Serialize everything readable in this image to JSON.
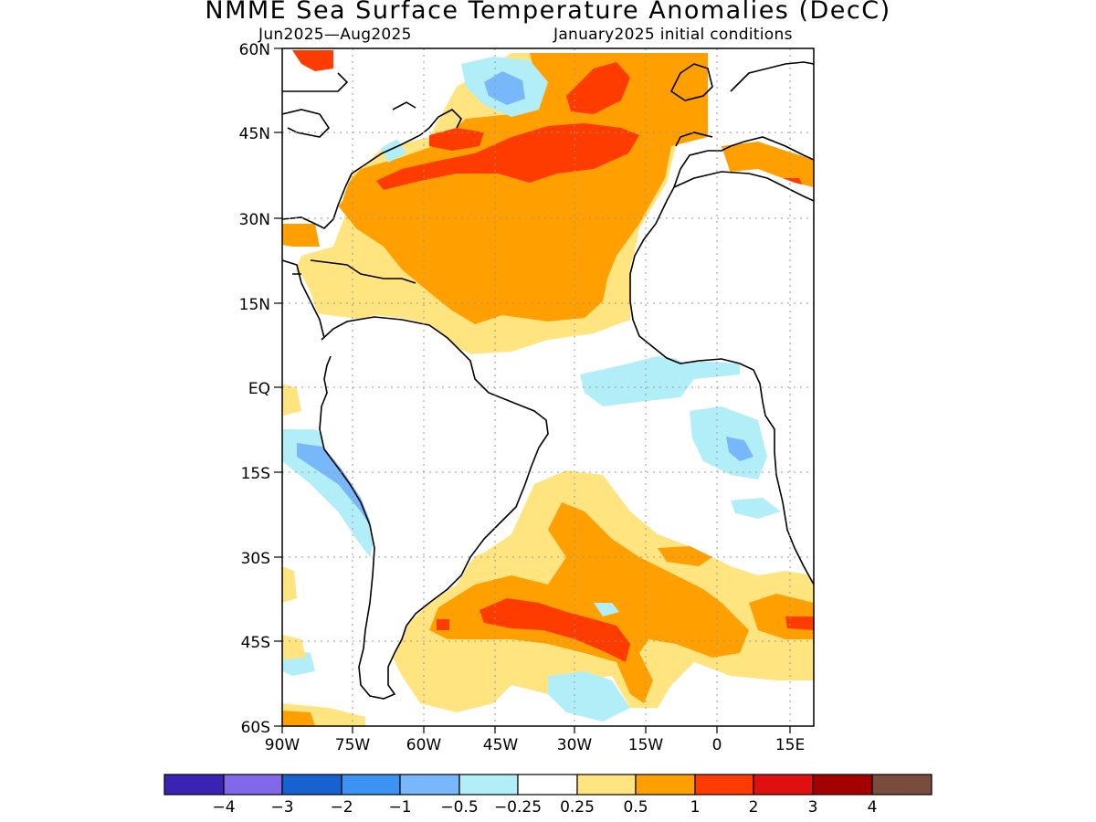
{
  "title": "NMME Sea Surface Temperature Anomalies (DecC)",
  "period": "Jun2025—Aug2025",
  "init": "January2025 initial conditions",
  "lat_labels": [
    "60N",
    "45N",
    "30N",
    "15N",
    "EQ",
    "15S",
    "30S",
    "45S",
    "60S"
  ],
  "lon_labels": [
    "90W",
    "75W",
    "60W",
    "45W",
    "30W",
    "15W",
    "0",
    "15E"
  ],
  "colorbar": {
    "colors": [
      "#3a22b5",
      "#8068e8",
      "#1662d0",
      "#3d93f2",
      "#78b7fa",
      "#b2eef8",
      "#ffffff",
      "#ffe480",
      "#ffa000",
      "#ff3c00",
      "#e01010",
      "#a50000",
      "#7a4c3e"
    ],
    "labels": [
      "−4",
      "−3",
      "−2",
      "−1",
      "−0.5",
      "−0.25",
      "0.25",
      "0.5",
      "1",
      "2",
      "3",
      "4"
    ]
  },
  "legend_colors": {
    "neg_025_05": "#b2eef8",
    "neg_05_1": "#78b7fa",
    "pos_025_05": "#ffe480",
    "pos_05_1": "#ffa000",
    "pos_1_2": "#ff3c00",
    "pos_4_plus": "#7a4c3e"
  }
}
